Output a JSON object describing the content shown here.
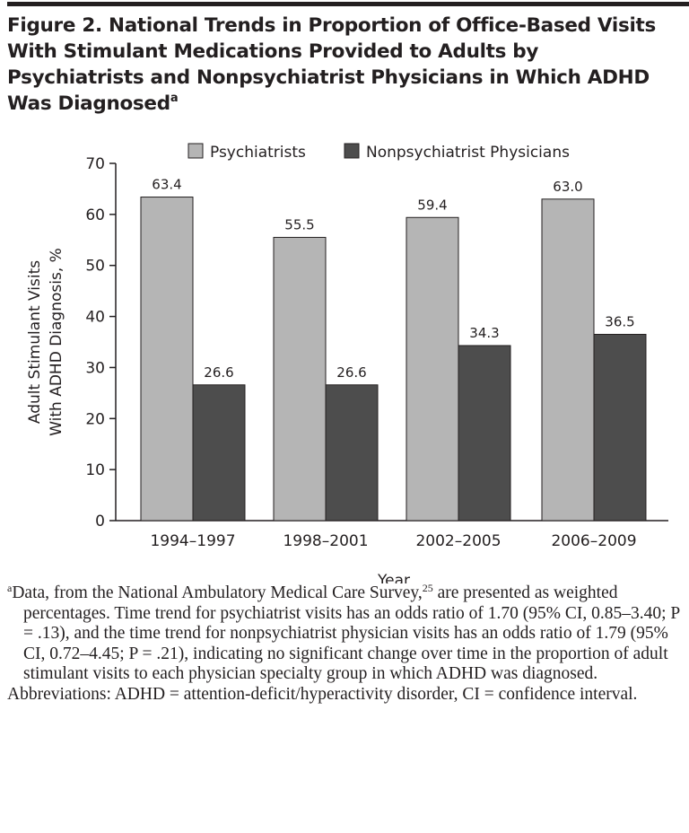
{
  "title": "Figure 2. National Trends in Proportion of Office-Based Visits With Stimulant Medications Provided to Adults by Psychiatrists and Nonpsychiatrist Physicians in Which ADHD Was Diagnosed",
  "title_footnote_mark": "a",
  "chart_data": {
    "type": "bar",
    "categories": [
      "1994–1997",
      "1998–2001",
      "2002–2005",
      "2006–2009"
    ],
    "series": [
      {
        "name": "Psychiatrists",
        "values": [
          63.4,
          55.5,
          59.4,
          63.0
        ],
        "color": "#b5b5b5"
      },
      {
        "name": "Nonpsychiatrist Physicians",
        "values": [
          26.6,
          26.6,
          34.3,
          36.5
        ],
        "color": "#4d4d4d"
      }
    ],
    "data_labels": [
      [
        "63.4",
        "55.5",
        "59.4",
        "63.0"
      ],
      [
        "26.6",
        "26.6",
        "34.3",
        "36.5"
      ]
    ],
    "xlabel": "Year",
    "ylabel_lines": [
      "Adult Stimulant Visits",
      "With ADHD Diagnosis, %"
    ],
    "ylim": [
      0,
      70
    ],
    "yticks": [
      0,
      10,
      20,
      30,
      40,
      50,
      60,
      70
    ],
    "grid": false,
    "legend_position": "top"
  },
  "footnotes": {
    "a_mark": "a",
    "a_text_1": "Data, from the National Ambulatory Medical Care Survey,",
    "a_ref": "25",
    "a_text_2": " are presented as weighted percentages. Time trend for psychiatrist visits has an odds ratio of 1.70 (95% CI, 0.85–3.40; P = .13), and the time trend for nonpsychiatrist physician visits has an odds ratio of 1.79 (95% CI, 0.72–4.45; P = .21), indicating no significant change over time in the proportion of adult stimulant visits to each physician specialty group in which ADHD was diagnosed.",
    "abbreviations": "Abbreviations: ADHD = attention-deficit/hyperactivity disorder, CI = confidence interval."
  }
}
